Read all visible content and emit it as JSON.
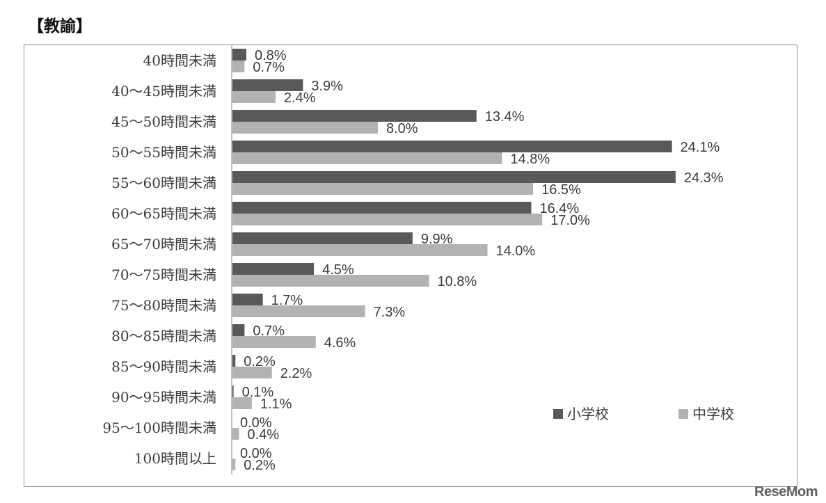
{
  "heading": "【教諭】",
  "watermark": "ReseMom",
  "colors": {
    "elementary": "#595959",
    "junior_high": "#b2b2b2",
    "frame": "#8c8c8c",
    "axis": "#bfbfbf"
  },
  "chart_data": {
    "type": "bar",
    "orientation": "horizontal",
    "categories": [
      "40時間未満",
      "40～45時間未満",
      "45～50時間未満",
      "50～55時間未満",
      "55～60時間未満",
      "60～65時間未満",
      "65～70時間未満",
      "70～75時間未満",
      "75～80時間未満",
      "80～85時間未満",
      "85～90時間未満",
      "90～95時間未満",
      "95～100時間未満",
      "100時間以上"
    ],
    "series": [
      {
        "name": "小学校",
        "values": [
          0.8,
          3.9,
          13.4,
          24.1,
          24.3,
          16.4,
          9.9,
          4.5,
          1.7,
          0.7,
          0.2,
          0.1,
          0.0,
          0.0
        ],
        "labels": [
          "0.8%",
          "3.9%",
          "13.4%",
          "24.1%",
          "24.3%",
          "16.4%",
          "9.9%",
          "4.5%",
          "1.7%",
          "0.7%",
          "0.2%",
          "0.1%",
          "0.0%",
          "0.0%"
        ]
      },
      {
        "name": "中学校",
        "values": [
          0.7,
          2.4,
          8.0,
          14.8,
          16.5,
          17.0,
          14.0,
          10.8,
          7.3,
          4.6,
          2.2,
          1.1,
          0.4,
          0.2
        ],
        "labels": [
          "0.7%",
          "2.4%",
          "8.0%",
          "14.8%",
          "16.5%",
          "17.0%",
          "14.0%",
          "10.8%",
          "7.3%",
          "4.6%",
          "2.2%",
          "1.1%",
          "0.4%",
          "0.2%"
        ]
      }
    ],
    "xlim": [
      0,
      25
    ],
    "grid": false,
    "legend": "bottom-right"
  }
}
